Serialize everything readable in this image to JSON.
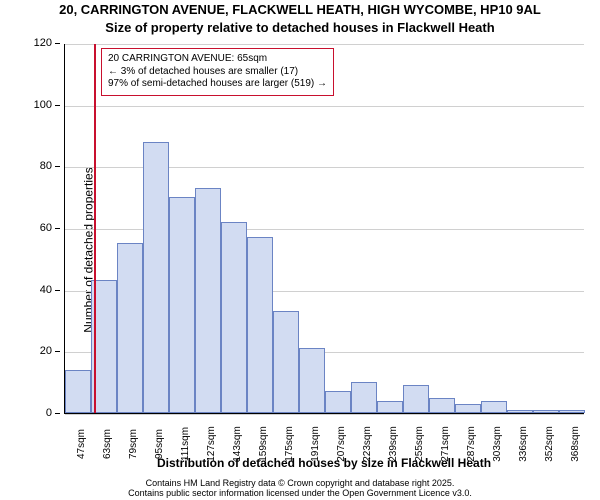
{
  "title_line1": "20, CARRINGTON AVENUE, FLACKWELL HEATH, HIGH WYCOMBE, HP10 9AL",
  "title_line2": "Size of property relative to detached houses in Flackwell Heath",
  "title_fontsize": 13,
  "y_axis_label": "Number of detached properties",
  "x_axis_label": "Distribution of detached houses by size in Flackwell Heath",
  "axis_label_fontsize": 12,
  "footer_line1": "Contains HM Land Registry data © Crown copyright and database right 2025.",
  "footer_line2": "Contains public sector information licensed under the Open Government Licence v3.0.",
  "footer_fontsize": 9,
  "chart": {
    "type": "histogram",
    "background_color": "#ffffff",
    "grid_color": "#d0d0d0",
    "bar_fill": "#d2dcf2",
    "bar_border": "#6b84c4",
    "marker_color": "#c8102e",
    "ylim": [
      0,
      120
    ],
    "yticks": [
      0,
      20,
      40,
      60,
      80,
      100,
      120
    ],
    "x_categories": [
      "47sqm",
      "63sqm",
      "79sqm",
      "95sqm",
      "111sqm",
      "127sqm",
      "143sqm",
      "159sqm",
      "175sqm",
      "191sqm",
      "207sqm",
      "223sqm",
      "239sqm",
      "255sqm",
      "271sqm",
      "287sqm",
      "303sqm",
      "336sqm",
      "352sqm",
      "368sqm"
    ],
    "values": [
      14,
      43,
      55,
      88,
      70,
      73,
      62,
      57,
      33,
      21,
      7,
      10,
      4,
      9,
      5,
      3,
      4,
      1,
      1,
      1
    ],
    "marker_x_index": 1.1,
    "y_tick_fontsize": 11,
    "x_tick_fontsize": 10,
    "bar_gap": 0
  },
  "annotation": {
    "border_color": "#c8102e",
    "bg_color": "#ffffff",
    "line1": "20 CARRINGTON AVENUE: 65sqm",
    "line2": "← 3% of detached houses are smaller (17)",
    "line3": "97% of semi-detached houses are larger (519) →",
    "fontsize": 10
  }
}
